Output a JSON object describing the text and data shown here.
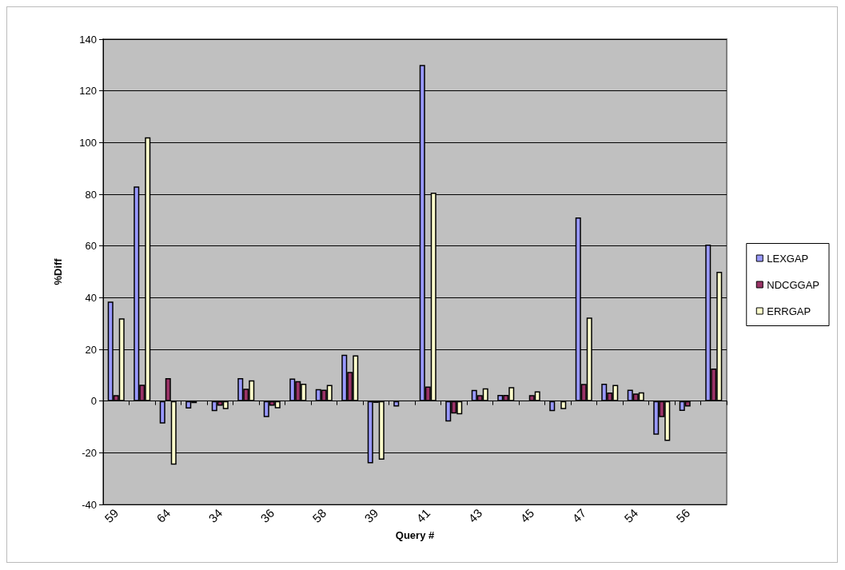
{
  "chart_data": {
    "type": "bar",
    "xlabel": "Query #",
    "ylabel": "%Diff",
    "categories": [
      "59",
      null,
      "64",
      null,
      "34",
      null,
      "36",
      null,
      "58",
      null,
      "39",
      null,
      "41",
      null,
      "43",
      null,
      "45",
      null,
      "47",
      null,
      "54",
      null,
      "56",
      null
    ],
    "series": [
      {
        "name": "LEXGAP",
        "color": "#9999ff",
        "values": [
          38.5,
          83,
          -8.7,
          -2.9,
          -3.9,
          8.9,
          -6.2,
          8.7,
          4.6,
          17.9,
          -24.1,
          -2.1,
          130,
          -7.9,
          4.3,
          2.4,
          null,
          -3.9,
          71,
          6.7,
          4.4,
          -13,
          -3.8,
          60.5
        ]
      },
      {
        "name": "NDCGGAP",
        "color": "#993366",
        "values": [
          2.3,
          6.3,
          8.9,
          -0.8,
          -1.8,
          4.8,
          -1.8,
          7.7,
          4.4,
          11.3,
          -0.7,
          null,
          5.6,
          -4.8,
          2.3,
          2.4,
          2.3,
          null,
          6.6,
          3.3,
          2.9,
          -6.2,
          -2.1,
          12.6
        ]
      },
      {
        "name": "ERRGAP",
        "color": "#ffffcc",
        "values": [
          32,
          102,
          -24.6,
          null,
          -3.1,
          8,
          -2.8,
          6.7,
          6.2,
          17.7,
          -22.7,
          null,
          80.6,
          -5.1,
          4.9,
          5.4,
          3.8,
          -3.1,
          32.3,
          6.2,
          3.4,
          -15.4,
          null,
          50
        ]
      }
    ],
    "ylim": [
      -40,
      140
    ],
    "yticks": [
      -40,
      -20,
      0,
      20,
      40,
      60,
      80,
      100,
      120,
      140
    ],
    "grid": "y",
    "legend": "right"
  }
}
